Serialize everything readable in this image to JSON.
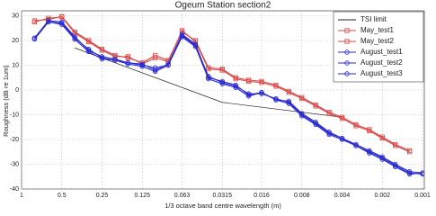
{
  "chart_data": {
    "type": "line",
    "title": "Ogeum Station section2",
    "xlabel": "1/3 octave band centre wavelength (m)",
    "ylabel": "Roughness (dB re 1um)",
    "x": [
      0.8,
      0.63,
      0.5,
      0.4,
      0.315,
      0.25,
      0.2,
      0.16,
      0.125,
      0.1,
      0.08,
      0.063,
      0.05,
      0.04,
      0.0315,
      0.025,
      0.02,
      0.016,
      0.0125,
      0.01,
      0.008,
      0.0063,
      0.005,
      0.004,
      0.00315,
      0.0025,
      0.002,
      0.0016,
      0.00125,
      0.001
    ],
    "xscale": "log",
    "xreversed": true,
    "xlim": [
      1,
      0.00097
    ],
    "xticks": [
      1,
      0.5,
      0.25,
      0.125,
      0.063,
      0.0315,
      0.016,
      0.008,
      0.004,
      0.002,
      0.001
    ],
    "ylim": [
      -40,
      32
    ],
    "yticks": [
      30,
      20,
      10,
      0,
      -10,
      -20,
      -30,
      -40
    ],
    "grid": true,
    "legend": "upper right",
    "series": [
      {
        "name": "TSI limit",
        "color": "#222222",
        "marker": "none",
        "x": [
          0.4,
          0.0315,
          0.004
        ],
        "values": [
          17,
          -5,
          -11
        ]
      },
      {
        "name": "May_test1",
        "color": "#d94848",
        "marker": "square",
        "values": [
          28,
          28.5,
          29.7,
          23.5,
          20,
          16.5,
          14,
          13,
          11,
          14,
          12,
          23.5,
          20,
          9,
          8.5,
          5,
          4,
          3.5,
          2,
          -0.5,
          -3,
          -6,
          -9,
          -11,
          -14,
          -16,
          -19,
          -22,
          -24.5,
          null
        ]
      },
      {
        "name": "May_test2",
        "color": "#d94848",
        "marker": "square",
        "values": [
          27.5,
          29,
          29.5,
          23,
          19.5,
          16,
          13.5,
          13.5,
          10.5,
          13,
          11.5,
          24,
          19.5,
          8.5,
          8,
          4.5,
          3.5,
          3,
          1.5,
          -1,
          -3.5,
          -6.5,
          -9.5,
          -11.5,
          -14.5,
          -16.5,
          -19.5,
          -22.5,
          -25,
          null
        ]
      },
      {
        "name": "August_test1",
        "color": "#2a2ad0",
        "marker": "circle",
        "values": [
          21,
          27.5,
          27,
          21,
          16.5,
          13,
          12,
          11,
          10.5,
          8,
          10.5,
          22.5,
          18.5,
          5,
          3.5,
          2,
          -2,
          -1,
          -4,
          -4.5,
          -9.5,
          -13,
          -17,
          -19.5,
          -22,
          -24.5,
          -27,
          -30,
          -33,
          -33.5
        ]
      },
      {
        "name": "August_test2",
        "color": "#2a2ad0",
        "marker": "circle",
        "values": [
          21,
          28,
          27.5,
          21.5,
          16,
          13.5,
          12.5,
          11,
          10,
          9,
          10,
          22,
          18,
          5.5,
          3,
          1.5,
          -1.5,
          -1.5,
          -3.5,
          -5,
          -10,
          -13.5,
          -17.5,
          -19.5,
          -22.5,
          -25,
          -27.5,
          -30.5,
          -33.5,
          -34
        ]
      },
      {
        "name": "August_test3",
        "color": "#2a2ad0",
        "marker": "circle",
        "values": [
          20.5,
          27.5,
          26.5,
          20.5,
          15.5,
          12.5,
          12,
          10.5,
          9.5,
          7.5,
          10,
          21.5,
          17.5,
          4.5,
          2.5,
          1,
          -2.5,
          -1,
          -4,
          -5.5,
          -10.5,
          -14,
          -18,
          -20,
          -22.5,
          -25.5,
          -28,
          -31,
          -34,
          -33.5
        ]
      }
    ]
  }
}
